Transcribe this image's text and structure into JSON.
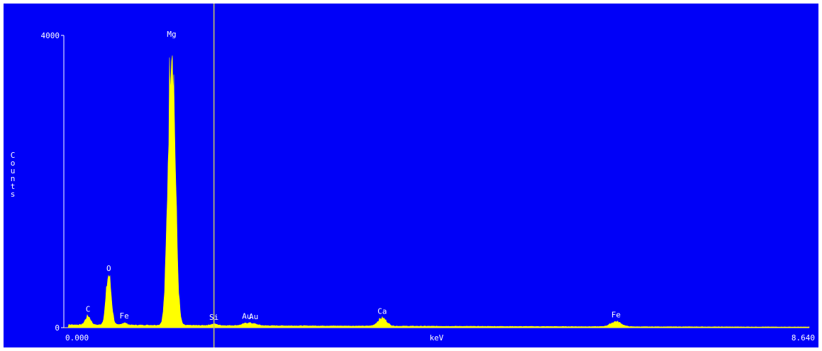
{
  "colors": {
    "background": "#0000f8",
    "axis": "#ffffff",
    "spectrum": "#ffff00",
    "cursor": "#c8c864",
    "text": "#ffffff"
  },
  "chart_data": {
    "type": "area",
    "title": "",
    "xlabel": "keV",
    "ylabel": "Counts",
    "xlim": [
      0.0,
      8.64
    ],
    "ylim": [
      0,
      4000
    ],
    "x_tick_labels": [
      "0.000",
      "8.640"
    ],
    "y_tick_labels": [
      "4000",
      "0"
    ],
    "grid": false,
    "legend": "none",
    "cursor_kev": 1.74,
    "background_counts": 40,
    "peaks": [
      {
        "label": "C",
        "kev": 0.28,
        "counts": 120,
        "width": 0.03
      },
      {
        "label": "O",
        "kev": 0.52,
        "counts": 680,
        "width": 0.03
      },
      {
        "label": "Fe",
        "kev": 0.7,
        "counts": 30,
        "width": 0.03
      },
      {
        "label": "Mg",
        "kev": 1.25,
        "counts": 4000,
        "width": 0.04
      },
      {
        "label": "Si",
        "kev": 1.74,
        "counts": 20,
        "width": 0.04
      },
      {
        "label": "Au",
        "kev": 2.12,
        "counts": 30,
        "width": 0.05
      },
      {
        "label": "Au",
        "kev": 2.2,
        "counts": 20,
        "width": 0.05
      },
      {
        "label": "Ca",
        "kev": 3.69,
        "counts": 110,
        "width": 0.05
      },
      {
        "label": "Fe",
        "kev": 6.4,
        "counts": 70,
        "width": 0.06
      }
    ]
  }
}
